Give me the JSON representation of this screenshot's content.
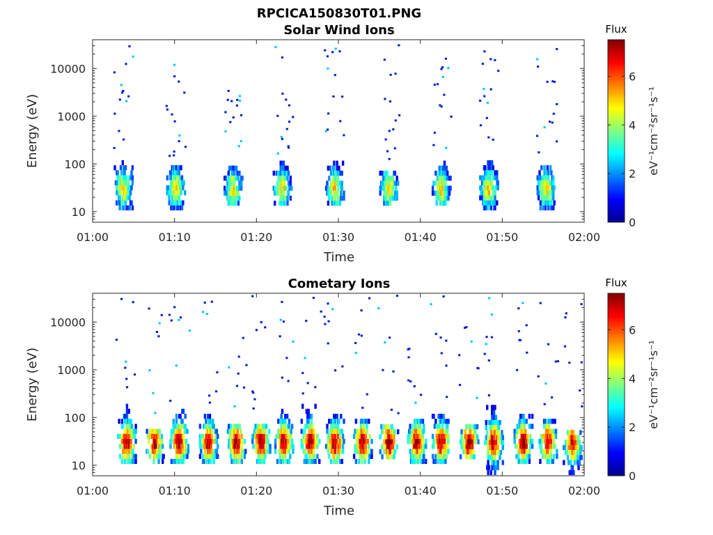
{
  "figure": {
    "title": "RPCICA150830T01.PNG"
  },
  "colorbar": {
    "title": "Flux",
    "unit_label": "eV⁻¹cm⁻²sr⁻¹s⁻¹",
    "ticks": [
      "0",
      "2",
      "4",
      "6"
    ],
    "range": [
      0,
      7.5
    ],
    "colormap": "jet"
  },
  "chart_data": [
    {
      "type": "heatmap",
      "title": "Solar Wind Ions",
      "xlabel": "Time",
      "ylabel": "Energy (eV)",
      "x_ticks": [
        "01:00",
        "01:10",
        "01:20",
        "01:30",
        "01:40",
        "01:50",
        "02:00"
      ],
      "xlim_minutes": [
        0,
        60
      ],
      "y_ticks": [
        "10",
        "100",
        "1000",
        "10000"
      ],
      "y_scale": "log",
      "ylim": [
        6,
        40000
      ],
      "bursts": [
        {
          "t_min": 3.8,
          "flux_peak": 4.8,
          "energy_range": [
            12,
            120
          ]
        },
        {
          "t_min": 10.2,
          "flux_peak": 4.8,
          "energy_range": [
            12,
            100
          ]
        },
        {
          "t_min": 17.2,
          "flux_peak": 4.8,
          "energy_range": [
            15,
            90
          ]
        },
        {
          "t_min": 23.2,
          "flux_peak": 4.8,
          "energy_range": [
            15,
            110
          ]
        },
        {
          "t_min": 29.6,
          "flux_peak": 4.8,
          "energy_range": [
            15,
            110
          ]
        },
        {
          "t_min": 36.2,
          "flux_peak": 4.8,
          "energy_range": [
            15,
            80
          ]
        },
        {
          "t_min": 42.6,
          "flux_peak": 4.8,
          "energy_range": [
            15,
            110
          ]
        },
        {
          "t_min": 48.4,
          "flux_peak": 4.8,
          "energy_range": [
            12,
            110
          ]
        },
        {
          "t_min": 55.4,
          "flux_peak": 4.8,
          "energy_range": [
            12,
            100
          ]
        }
      ]
    },
    {
      "type": "heatmap",
      "title": "Cometary Ions",
      "xlabel": "Time",
      "ylabel": "Energy (eV)",
      "x_ticks": [
        "01:00",
        "01:10",
        "01:20",
        "01:30",
        "01:40",
        "01:50",
        "02:00"
      ],
      "xlim_minutes": [
        0,
        60
      ],
      "y_ticks": [
        "10",
        "100",
        "1000",
        "10000"
      ],
      "y_scale": "log",
      "ylim": [
        6,
        40000
      ],
      "bursts": [
        {
          "t_min": 4.2,
          "flux_peak": 7.2,
          "energy_range": [
            12,
            180
          ]
        },
        {
          "t_min": 7.6,
          "flux_peak": 7.0,
          "energy_range": [
            12,
            60
          ]
        },
        {
          "t_min": 10.6,
          "flux_peak": 7.2,
          "energy_range": [
            12,
            150
          ]
        },
        {
          "t_min": 14.2,
          "flux_peak": 7.2,
          "energy_range": [
            12,
            120
          ]
        },
        {
          "t_min": 17.6,
          "flux_peak": 7.2,
          "energy_range": [
            12,
            80
          ]
        },
        {
          "t_min": 20.6,
          "flux_peak": 7.2,
          "energy_range": [
            12,
            80
          ]
        },
        {
          "t_min": 23.4,
          "flux_peak": 7.2,
          "energy_range": [
            12,
            150
          ]
        },
        {
          "t_min": 26.6,
          "flux_peak": 7.2,
          "energy_range": [
            12,
            180
          ]
        },
        {
          "t_min": 29.6,
          "flux_peak": 7.2,
          "energy_range": [
            12,
            120
          ]
        },
        {
          "t_min": 33.0,
          "flux_peak": 7.2,
          "energy_range": [
            12,
            100
          ]
        },
        {
          "t_min": 36.2,
          "flux_peak": 7.2,
          "energy_range": [
            15,
            80
          ]
        },
        {
          "t_min": 39.6,
          "flux_peak": 7.2,
          "energy_range": [
            12,
            90
          ]
        },
        {
          "t_min": 42.6,
          "flux_peak": 7.2,
          "energy_range": [
            12,
            120
          ]
        },
        {
          "t_min": 46.0,
          "flux_peak": 7.2,
          "energy_range": [
            15,
            80
          ]
        },
        {
          "t_min": 49.0,
          "flux_peak": 7.2,
          "energy_range": [
            7,
            200
          ]
        },
        {
          "t_min": 52.6,
          "flux_peak": 7.4,
          "energy_range": [
            12,
            130
          ]
        },
        {
          "t_min": 55.6,
          "flux_peak": 7.0,
          "energy_range": [
            12,
            90
          ]
        },
        {
          "t_min": 58.6,
          "flux_peak": 6.8,
          "energy_range": [
            7,
            60
          ]
        }
      ]
    }
  ]
}
